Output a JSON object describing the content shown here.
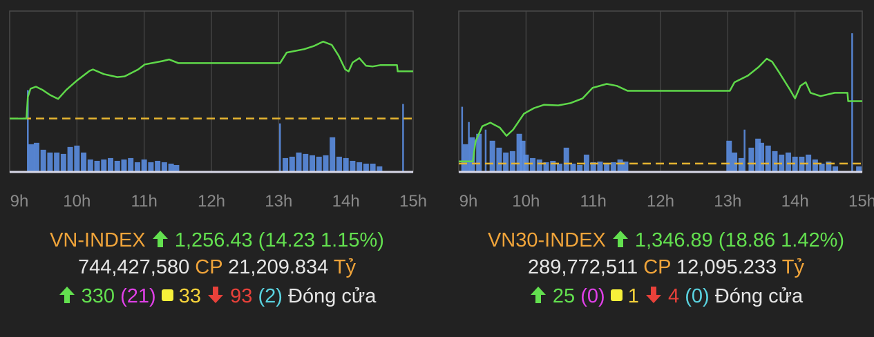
{
  "colors": {
    "background": "#222222",
    "price_line": "#5fd94a",
    "reference_line": "#e7b531",
    "volume": "#5b8de0",
    "grid": "#4a4a4a",
    "axis": "#d8d8e8",
    "tick": "#8a8a8a"
  },
  "chart_data": [
    {
      "type": "line",
      "title": "VN-INDEX",
      "x_ticks": [
        "9h",
        "10h",
        "11h",
        "12h",
        "13h",
        "14h",
        "15h"
      ],
      "xlim": [
        9,
        15
      ],
      "ylim": [
        1226.1,
        1274.6
      ],
      "reference": 1242.2,
      "grid": "vertical",
      "series": [
        {
          "name": "price",
          "points": [
            [
              9.0,
              1242.2
            ],
            [
              9.25,
              1242.2
            ],
            [
              9.27,
              1248.7
            ],
            [
              9.31,
              1251.2
            ],
            [
              9.39,
              1251.8
            ],
            [
              9.49,
              1250.8
            ],
            [
              9.6,
              1249.3
            ],
            [
              9.72,
              1248.1
            ],
            [
              9.84,
              1250.8
            ],
            [
              9.99,
              1253.5
            ],
            [
              10.19,
              1256.6
            ],
            [
              10.24,
              1257.0
            ],
            [
              10.4,
              1255.6
            ],
            [
              10.6,
              1254.7
            ],
            [
              10.71,
              1254.9
            ],
            [
              10.91,
              1257.0
            ],
            [
              11.01,
              1258.5
            ],
            [
              11.27,
              1259.5
            ],
            [
              11.37,
              1260.0
            ],
            [
              11.51,
              1258.9
            ],
            [
              13.02,
              1258.9
            ],
            [
              13.12,
              1262.1
            ],
            [
              13.38,
              1263.1
            ],
            [
              13.53,
              1264.1
            ],
            [
              13.66,
              1265.4
            ],
            [
              13.79,
              1264.4
            ],
            [
              13.89,
              1261.2
            ],
            [
              13.99,
              1257.0
            ],
            [
              14.04,
              1256.4
            ],
            [
              14.1,
              1259.1
            ],
            [
              14.2,
              1260.4
            ],
            [
              14.3,
              1258.1
            ],
            [
              14.4,
              1257.9
            ],
            [
              14.51,
              1258.3
            ],
            [
              14.76,
              1258.3
            ],
            [
              14.77,
              1256.43
            ],
            [
              15.0,
              1256.43
            ]
          ]
        }
      ],
      "volume": [
        [
          9.27,
          118
        ],
        [
          9.32,
          40
        ],
        [
          9.4,
          42
        ],
        [
          9.5,
          32
        ],
        [
          9.6,
          28
        ],
        [
          9.7,
          28
        ],
        [
          9.8,
          26
        ],
        [
          9.9,
          36
        ],
        [
          10.0,
          38
        ],
        [
          10.1,
          28
        ],
        [
          10.2,
          18
        ],
        [
          10.3,
          16
        ],
        [
          10.4,
          18
        ],
        [
          10.5,
          20
        ],
        [
          10.6,
          16
        ],
        [
          10.7,
          18
        ],
        [
          10.8,
          20
        ],
        [
          10.9,
          14
        ],
        [
          11.0,
          18
        ],
        [
          11.1,
          14
        ],
        [
          11.2,
          16
        ],
        [
          11.3,
          14
        ],
        [
          11.4,
          12
        ],
        [
          11.48,
          10
        ],
        [
          13.02,
          70
        ],
        [
          13.1,
          20
        ],
        [
          13.2,
          22
        ],
        [
          13.3,
          28
        ],
        [
          13.4,
          26
        ],
        [
          13.5,
          24
        ],
        [
          13.6,
          22
        ],
        [
          13.7,
          24
        ],
        [
          13.8,
          50
        ],
        [
          13.9,
          22
        ],
        [
          14.0,
          20
        ],
        [
          14.1,
          16
        ],
        [
          14.2,
          14
        ],
        [
          14.3,
          12
        ],
        [
          14.4,
          12
        ],
        [
          14.5,
          8
        ],
        [
          14.85,
          98
        ]
      ],
      "volume_max": 232
    },
    {
      "type": "line",
      "title": "VN30-INDEX",
      "x_ticks": [
        "9h",
        "10h",
        "11h",
        "12h",
        "13h",
        "14h",
        "15h"
      ],
      "xlim": [
        9,
        15
      ],
      "ylim": [
        1325.5,
        1374.1
      ],
      "reference": 1328.03,
      "grid": "vertical",
      "series": [
        {
          "name": "price",
          "points": [
            [
              9.0,
              1328.7
            ],
            [
              9.21,
              1328.7
            ],
            [
              9.25,
              1334.7
            ],
            [
              9.35,
              1339.3
            ],
            [
              9.47,
              1340.4
            ],
            [
              9.61,
              1338.9
            ],
            [
              9.71,
              1336.4
            ],
            [
              9.81,
              1338.3
            ],
            [
              9.97,
              1343.1
            ],
            [
              10.12,
              1344.8
            ],
            [
              10.27,
              1345.8
            ],
            [
              10.48,
              1345.6
            ],
            [
              10.66,
              1346.3
            ],
            [
              10.84,
              1347.7
            ],
            [
              10.99,
              1350.9
            ],
            [
              11.2,
              1352.1
            ],
            [
              11.35,
              1351.5
            ],
            [
              11.51,
              1350.0
            ],
            [
              13.03,
              1350.0
            ],
            [
              13.1,
              1352.6
            ],
            [
              13.3,
              1354.6
            ],
            [
              13.46,
              1357.2
            ],
            [
              13.58,
              1359.7
            ],
            [
              13.66,
              1358.8
            ],
            [
              13.76,
              1355.7
            ],
            [
              13.92,
              1350.5
            ],
            [
              14.0,
              1347.7
            ],
            [
              14.08,
              1351.5
            ],
            [
              14.16,
              1352.6
            ],
            [
              14.23,
              1349.4
            ],
            [
              14.38,
              1348.4
            ],
            [
              14.59,
              1349.4
            ],
            [
              14.78,
              1349.4
            ],
            [
              14.79,
              1346.89
            ],
            [
              15.0,
              1346.89
            ]
          ]
        }
      ],
      "volume": [
        [
          9.05,
          94
        ],
        [
          9.1,
          40
        ],
        [
          9.15,
          72
        ],
        [
          9.2,
          50
        ],
        [
          9.3,
          55
        ],
        [
          9.4,
          61
        ],
        [
          9.5,
          45
        ],
        [
          9.6,
          35
        ],
        [
          9.7,
          28
        ],
        [
          9.8,
          30
        ],
        [
          9.9,
          55
        ],
        [
          9.95,
          45
        ],
        [
          10.0,
          25
        ],
        [
          10.1,
          20
        ],
        [
          10.2,
          18
        ],
        [
          10.3,
          14
        ],
        [
          10.4,
          16
        ],
        [
          10.5,
          12
        ],
        [
          10.6,
          35
        ],
        [
          10.7,
          12
        ],
        [
          10.8,
          10
        ],
        [
          10.9,
          25
        ],
        [
          11.0,
          14
        ],
        [
          11.1,
          15
        ],
        [
          11.2,
          12
        ],
        [
          11.3,
          14
        ],
        [
          11.4,
          18
        ],
        [
          11.48,
          15
        ],
        [
          13.02,
          45
        ],
        [
          13.1,
          28
        ],
        [
          13.2,
          20
        ],
        [
          13.25,
          61
        ],
        [
          13.35,
          35
        ],
        [
          13.45,
          48
        ],
        [
          13.5,
          42
        ],
        [
          13.6,
          38
        ],
        [
          13.7,
          30
        ],
        [
          13.8,
          25
        ],
        [
          13.9,
          28
        ],
        [
          14.0,
          22
        ],
        [
          14.1,
          22
        ],
        [
          14.2,
          25
        ],
        [
          14.3,
          18
        ],
        [
          14.4,
          12
        ],
        [
          14.5,
          15
        ],
        [
          14.6,
          8
        ],
        [
          14.85,
          200
        ],
        [
          14.95,
          8
        ]
      ],
      "volume_max": 232
    }
  ],
  "indices": [
    {
      "name": "VN-INDEX",
      "value": "1,256.43",
      "change": "(14.23 1.15%)",
      "volume": "744,427,580",
      "volume_unit": "CP",
      "turnover": "21,209.834",
      "turnover_unit": "Tỷ",
      "up": "330",
      "ceiling": "(21)",
      "unchanged": "33",
      "down": "93",
      "floor": "(2)",
      "status": "Đóng cửa"
    },
    {
      "name": "VN30-INDEX",
      "value": "1,346.89",
      "change": "(18.86 1.42%)",
      "volume": "289,772,511",
      "volume_unit": "CP",
      "turnover": "12,095.233",
      "turnover_unit": "Tỷ",
      "up": "25",
      "ceiling": "(0)",
      "unchanged": "1",
      "down": "4",
      "floor": "(0)",
      "status": "Đóng cửa"
    }
  ]
}
